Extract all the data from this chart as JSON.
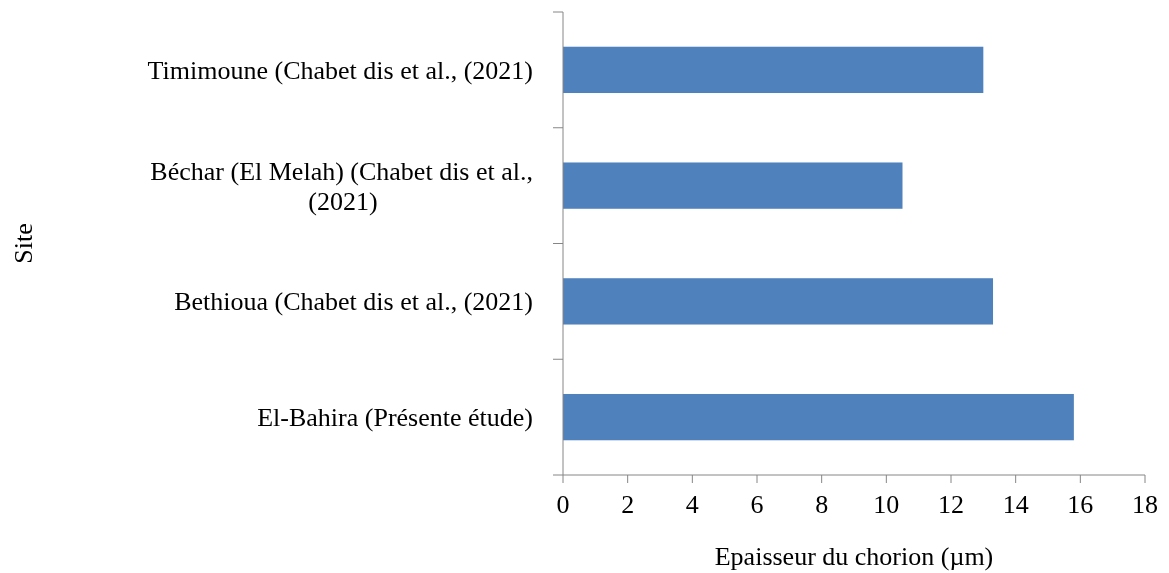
{
  "chart_data": {
    "type": "bar",
    "orientation": "horizontal",
    "categories": [
      "Timimoune (Chabet dis et al., (2021)",
      "Béchar (El Melah) (Chabet dis et al., (2021)",
      "Bethioua (Chabet dis et al., (2021)",
      "El-Bahira (Présente étude)"
    ],
    "values": [
      13.0,
      10.5,
      13.3,
      15.8
    ],
    "color": "#4f81bd",
    "xlim": [
      0,
      18
    ],
    "xticks": [
      0,
      2,
      4,
      6,
      8,
      10,
      12,
      14,
      16,
      18
    ],
    "xlabel": "Epaisseur du chorion (µm)",
    "ylabel": "Site"
  }
}
